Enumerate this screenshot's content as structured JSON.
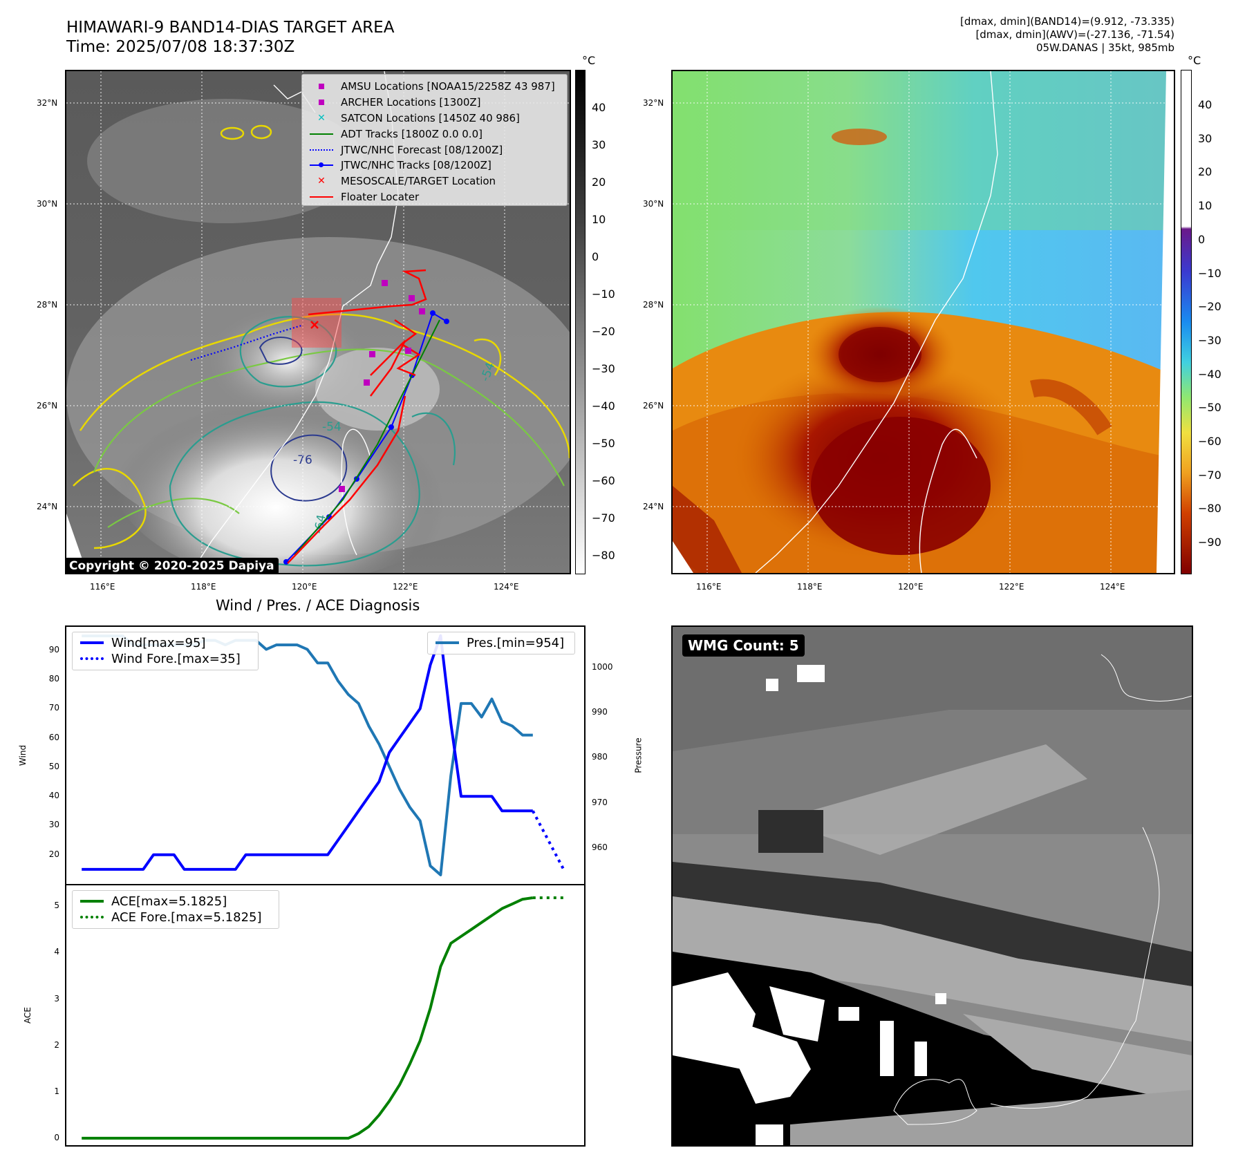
{
  "header": {
    "title_line1": "HIMAWARI-9 BAND14-DIAS TARGET AREA",
    "title_line2": "Time: 2025/07/08 18:37:30Z",
    "info_line1": "[dmax, dmin](BAND14)=(9.912, -73.335)",
    "info_line2": "[dmax, dmin](AWV)=(-27.136, -71.54)",
    "info_line3": "05W.DANAS | 35kt, 985mb"
  },
  "map": {
    "lat_ticks": [
      "32°N",
      "30°N",
      "28°N",
      "26°N",
      "24°N"
    ],
    "lon_ticks": [
      "116°E",
      "118°E",
      "120°E",
      "122°E",
      "124°E"
    ],
    "copyright": "Copyright © 2020-2025 Dapiya",
    "contour_labels": [
      "-54",
      "-76",
      "-64",
      "-54",
      "-54",
      "-64",
      "-54"
    ],
    "legend": [
      {
        "label": "AMSU Locations [NOAA15/2258Z 43 987]",
        "symbol": "square",
        "color": "#bf00bf"
      },
      {
        "label": "ARCHER Locations [1300Z]",
        "symbol": "square",
        "color": "#bf00bf"
      },
      {
        "label": "SATCON Locations [1450Z 40 986]",
        "symbol": "x",
        "color": "#00bfbf"
      },
      {
        "label": "ADT Tracks [1800Z 0.0 0.0]",
        "symbol": "line",
        "color": "#008000"
      },
      {
        "label": "JTWC/NHC Forecast [08/1200Z]",
        "symbol": "dotted",
        "color": "#0000ff"
      },
      {
        "label": "JTWC/NHC Tracks [08/1200Z]",
        "symbol": "line-dot",
        "color": "#0000ff"
      },
      {
        "label": "MESOSCALE/TARGET Location",
        "symbol": "x",
        "color": "#ff0000"
      },
      {
        "label": "Floater Locater",
        "symbol": "line",
        "color": "#ff0000"
      }
    ]
  },
  "colorbar_left": {
    "unit": "°C",
    "ticks": [
      "40",
      "30",
      "20",
      "10",
      "0",
      "−10",
      "−20",
      "−30",
      "−40",
      "−50",
      "−60",
      "−70",
      "−80"
    ]
  },
  "colorbar_right": {
    "unit": "°C",
    "ticks": [
      "40",
      "30",
      "20",
      "10",
      "0",
      "−10",
      "−20",
      "−30",
      "−40",
      "−50",
      "−60",
      "−70",
      "−80",
      "−90"
    ]
  },
  "wmg": {
    "badge": "WMG Count: 5"
  },
  "diagnosis": {
    "title": "Wind / Pres. / ACE Diagnosis",
    "wind_ylabel": "Wind",
    "pres_ylabel": "Pressure",
    "ace_ylabel": "ACE",
    "wind_legend": "Wind[max=95]",
    "wind_fore_legend": "Wind Fore.[max=35]",
    "pres_legend": "Pres.[min=954]",
    "ace_legend": "ACE[max=5.1825]",
    "ace_fore_legend": "ACE Fore.[max=5.1825]"
  },
  "chart_data": [
    {
      "type": "line",
      "title": "Wind / Pres. / ACE Diagnosis",
      "ylabel": "Wind",
      "ylim": [
        10,
        98
      ],
      "y_ticks": [
        20,
        30,
        40,
        50,
        60,
        70,
        80,
        90
      ],
      "series": [
        {
          "name": "Wind[max=95]",
          "color": "#0000ff",
          "style": "solid",
          "x": [
            0,
            1,
            2,
            3,
            4,
            5,
            6,
            7,
            8,
            9,
            10,
            11,
            12,
            13,
            14,
            15,
            16,
            17,
            18,
            19,
            20,
            21,
            22,
            23,
            24,
            25,
            26,
            27,
            28,
            29,
            30,
            31,
            32,
            33,
            34,
            35,
            36,
            37,
            38,
            39,
            40,
            41,
            42,
            43,
            44
          ],
          "values": [
            15,
            15,
            15,
            15,
            15,
            15,
            15,
            20,
            20,
            20,
            15,
            15,
            15,
            15,
            15,
            15,
            20,
            20,
            20,
            20,
            20,
            20,
            20,
            20,
            20,
            25,
            30,
            35,
            40,
            45,
            55,
            60,
            65,
            70,
            85,
            95,
            65,
            40,
            40,
            40,
            40,
            35,
            35,
            35,
            35
          ]
        },
        {
          "name": "Wind Fore.[max=35]",
          "color": "#0000ff",
          "style": "dotted",
          "x": [
            44,
            47
          ],
          "values": [
            35,
            15
          ]
        }
      ]
    },
    {
      "type": "line",
      "ylabel": "Pressure",
      "ylim": [
        952,
        1009
      ],
      "y_ticks": [
        960,
        970,
        980,
        990,
        1000
      ],
      "series": [
        {
          "name": "Pres.[min=954]",
          "color": "#1f77b4",
          "style": "solid",
          "x": [
            0,
            1,
            2,
            3,
            4,
            5,
            6,
            7,
            8,
            9,
            10,
            11,
            12,
            13,
            14,
            15,
            16,
            17,
            18,
            19,
            20,
            21,
            22,
            23,
            24,
            25,
            26,
            27,
            28,
            29,
            30,
            31,
            32,
            33,
            34,
            35,
            36,
            37,
            38,
            39,
            40,
            41,
            42,
            43,
            44
          ],
          "values": [
            1007,
            1007,
            1007,
            1007,
            1007,
            1005,
            1005,
            1005,
            1005,
            1005,
            1005,
            1005,
            1006,
            1006,
            1005,
            1006,
            1006,
            1006,
            1004,
            1005,
            1005,
            1005,
            1004,
            1001,
            1001,
            997,
            994,
            992,
            987,
            983,
            978,
            973,
            969,
            966,
            956,
            954,
            976,
            992,
            992,
            989,
            993,
            988,
            987,
            985,
            985
          ]
        }
      ]
    },
    {
      "type": "line",
      "ylabel": "ACE",
      "ylim": [
        -0.15,
        5.45
      ],
      "y_ticks": [
        0,
        1,
        2,
        3,
        4,
        5
      ],
      "series": [
        {
          "name": "ACE[max=5.1825]",
          "color": "#008000",
          "style": "solid",
          "x": [
            0,
            5,
            10,
            15,
            20,
            25,
            26,
            27,
            28,
            29,
            30,
            31,
            32,
            33,
            34,
            35,
            36,
            37,
            38,
            39,
            40,
            41,
            42,
            43,
            44
          ],
          "values": [
            0,
            0,
            0,
            0,
            0,
            0,
            0.0,
            0.1,
            0.25,
            0.5,
            0.8,
            1.15,
            1.6,
            2.1,
            2.8,
            3.7,
            4.2,
            4.35,
            4.5,
            4.65,
            4.8,
            4.95,
            5.05,
            5.15,
            5.1825
          ]
        },
        {
          "name": "ACE Fore.[max=5.1825]",
          "color": "#008000",
          "style": "dotted",
          "x": [
            44,
            47
          ],
          "values": [
            5.1825,
            5.1825
          ]
        }
      ]
    }
  ]
}
